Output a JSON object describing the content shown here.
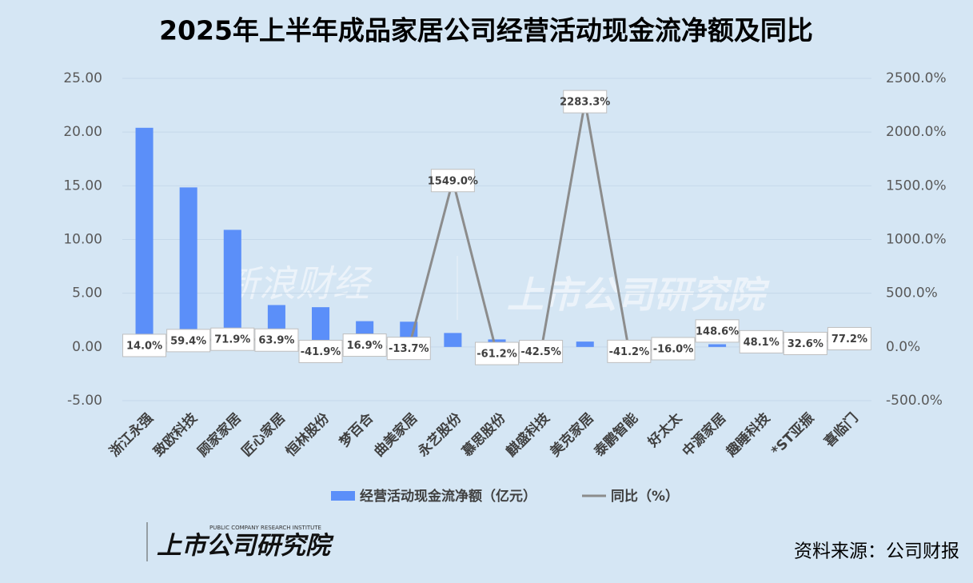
{
  "chart_data": {
    "type": "bar_line",
    "title": "2025年上半年成品家居公司经营活动现金流净额及同比",
    "categories": [
      "浙江永强",
      "致欧科技",
      "顾家家居",
      "匠心家居",
      "恒林股份",
      "梦百合",
      "曲美家居",
      "永艺股份",
      "慕思股份",
      "麒盛科技",
      "美克家居",
      "泰鹏智能",
      "好太太",
      "中源家居",
      "趣睡科技",
      "*ST亚振",
      "喜临门"
    ],
    "series": [
      {
        "name": "经营活动现金流净额（亿元）",
        "type": "bar",
        "color": "#5b8ff9",
        "negative_color": "#e8262a",
        "values": [
          20.4,
          14.85,
          10.9,
          3.9,
          3.7,
          2.4,
          2.35,
          1.3,
          0.7,
          0.05,
          0.5,
          0.05,
          0.1,
          0.25,
          0.1,
          0.05,
          -0.3
        ]
      },
      {
        "name": "同比（%）",
        "type": "line",
        "axis": "y2",
        "color": "#8c8c8c",
        "values": [
          14.0,
          59.4,
          71.9,
          63.9,
          -41.9,
          16.9,
          -13.7,
          1549.0,
          -61.2,
          -42.5,
          2283.3,
          -41.2,
          -16.0,
          148.6,
          48.1,
          32.6,
          77.2
        ],
        "value_labels": [
          "14.0%",
          "59.4%",
          "71.9%",
          "63.9%",
          "-41.9%",
          "16.9%",
          "-13.7%",
          "1549.0%",
          "-61.2%",
          "-42.5%",
          "2283.3%",
          "-41.2%",
          "-16.0%",
          "148.6%",
          "48.1%",
          "32.6%",
          "77.2%"
        ]
      }
    ],
    "ylim": [
      -5,
      25
    ],
    "yticks": [
      {
        "value": -5,
        "label": "-5.00"
      },
      {
        "value": 0,
        "label": "0.00"
      },
      {
        "value": 5,
        "label": "5.00"
      },
      {
        "value": 10,
        "label": "10.00"
      },
      {
        "value": 15,
        "label": "15.00"
      },
      {
        "value": 20,
        "label": "20.00"
      },
      {
        "value": 25,
        "label": "25.00"
      }
    ],
    "y2lim": [
      -500,
      2500
    ],
    "y2ticks": [
      {
        "value": -500,
        "label": "-500.0%"
      },
      {
        "value": 0,
        "label": "0.0%"
      },
      {
        "value": 500,
        "label": "500.0%"
      },
      {
        "value": 1000,
        "label": "1000.0%"
      },
      {
        "value": 1500,
        "label": "1500.0%"
      },
      {
        "value": 2000,
        "label": "2000.0%"
      },
      {
        "value": 2500,
        "label": "2500.0%"
      }
    ],
    "grid": true,
    "legend": "bottom",
    "source": "资料来源：公司财报"
  },
  "branding": {
    "watermark": [
      "新浪财经",
      "上市公司研究院"
    ],
    "logo": "上市公司研究院",
    "logo_subtitle": "PUBLIC COMPANY RESEARCH INSTITUTE"
  }
}
